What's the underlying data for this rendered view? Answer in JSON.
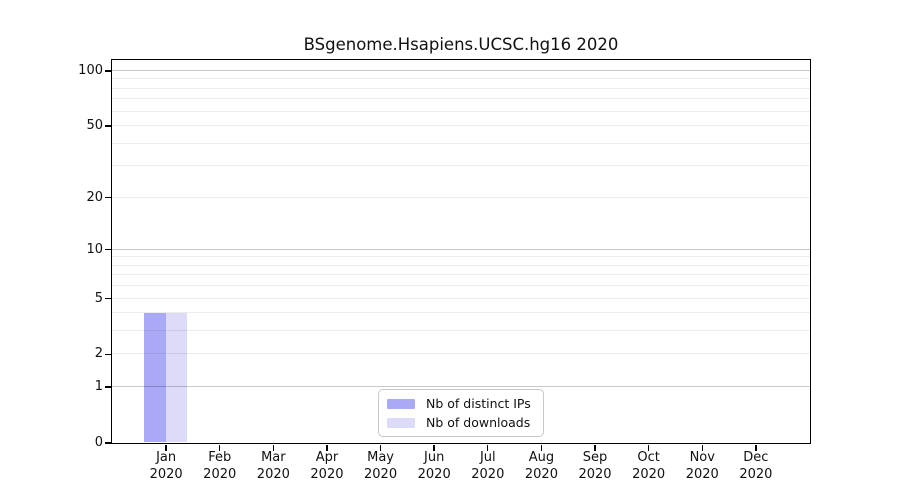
{
  "chart_data": {
    "type": "bar",
    "title": "BSgenome.Hsapiens.UCSC.hg16 2020",
    "categories": [
      "Jan 2020",
      "Feb 2020",
      "Mar 2020",
      "Apr 2020",
      "May 2020",
      "Jun 2020",
      "Jul 2020",
      "Aug 2020",
      "Sep 2020",
      "Oct 2020",
      "Nov 2020",
      "Dec 2020"
    ],
    "series": [
      {
        "name": "Nb of distinct IPs",
        "color": "#a9a9f5",
        "values": [
          4,
          0,
          0,
          0,
          0,
          0,
          0,
          0,
          0,
          0,
          0,
          0
        ]
      },
      {
        "name": "Nb of downloads",
        "color": "#dcdcf8",
        "values": [
          4,
          0,
          0,
          0,
          0,
          0,
          0,
          0,
          0,
          0,
          0,
          0
        ]
      }
    ],
    "xlabel": "",
    "ylabel": "",
    "yscale": "log1p",
    "y_ticks": [
      0,
      1,
      2,
      5,
      10,
      20,
      50,
      100
    ],
    "ylim": [
      0,
      115
    ],
    "grid": {
      "major_values": [
        1,
        10,
        100
      ],
      "minor_values": [
        2,
        3,
        4,
        5,
        6,
        7,
        8,
        9,
        20,
        30,
        40,
        50,
        60,
        70,
        80,
        90
      ]
    },
    "legend": {
      "position": "bottom-center",
      "items": [
        "Nb of distinct IPs",
        "Nb of downloads"
      ]
    }
  }
}
